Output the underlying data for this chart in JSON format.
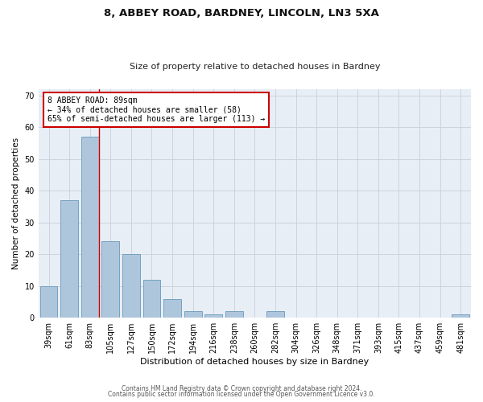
{
  "title_line1": "8, ABBEY ROAD, BARDNEY, LINCOLN, LN3 5XA",
  "title_line2": "Size of property relative to detached houses in Bardney",
  "xlabel": "Distribution of detached houses by size in Bardney",
  "ylabel": "Number of detached properties",
  "categories": [
    "39sqm",
    "61sqm",
    "83sqm",
    "105sqm",
    "127sqm",
    "150sqm",
    "172sqm",
    "194sqm",
    "216sqm",
    "238sqm",
    "260sqm",
    "282sqm",
    "304sqm",
    "326sqm",
    "348sqm",
    "371sqm",
    "393sqm",
    "415sqm",
    "437sqm",
    "459sqm",
    "481sqm"
  ],
  "values": [
    10,
    37,
    57,
    24,
    20,
    12,
    6,
    2,
    1,
    2,
    0,
    2,
    0,
    0,
    0,
    0,
    0,
    0,
    0,
    0,
    1
  ],
  "bar_color": "#aec6dc",
  "bar_edgecolor": "#6699bb",
  "vline_color": "#cc0000",
  "annotation_text": "8 ABBEY ROAD: 89sqm\n← 34% of detached houses are smaller (58)\n65% of semi-detached houses are larger (113) →",
  "annotation_box_color": "#ffffff",
  "annotation_box_edgecolor": "#cc0000",
  "ylim": [
    0,
    72
  ],
  "yticks": [
    0,
    10,
    20,
    30,
    40,
    50,
    60,
    70
  ],
  "grid_color": "#c8d0da",
  "bg_color": "#e8eef5",
  "footer_line1": "Contains HM Land Registry data © Crown copyright and database right 2024.",
  "footer_line2": "Contains public sector information licensed under the Open Government Licence v3.0."
}
